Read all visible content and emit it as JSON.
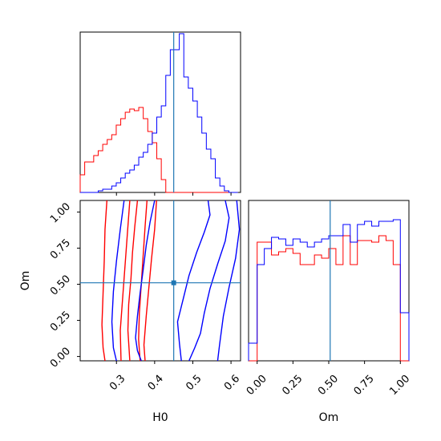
{
  "chart_data": {
    "type": "corner",
    "parameters": [
      "H0",
      "Om"
    ],
    "truths": {
      "H0": 0.45,
      "Om": 0.51
    },
    "truth_color": "#1f77b4",
    "series": [
      {
        "color": "#ff0000"
      },
      {
        "color": "#0000ff"
      }
    ],
    "x_labels": [
      "H0",
      "Om"
    ],
    "y_label": "Om",
    "panels": [
      {
        "id": "hist-H0",
        "type": "histogram",
        "parameter": "H0",
        "xlim": [
          0.205,
          0.625
        ],
        "ylim": [
          0,
          1.0
        ],
        "bin_edges": [
          0.205,
          0.2168,
          0.2286,
          0.2404,
          0.2522,
          0.264,
          0.2758,
          0.2876,
          0.2994,
          0.3112,
          0.323,
          0.3348,
          0.3466,
          0.3584,
          0.3702,
          0.382,
          0.3938,
          0.4056,
          0.4174,
          0.4292,
          0.441,
          0.4528,
          0.4646,
          0.4764,
          0.4882,
          0.5,
          0.5118,
          0.5236,
          0.5354,
          0.5472,
          0.559,
          0.5708,
          0.5826,
          0.5944,
          0.6062,
          0.618
        ],
        "counts": {
          "red": [
            0.11,
            0.19,
            0.19,
            0.23,
            0.26,
            0.3,
            0.33,
            0.36,
            0.42,
            0.46,
            0.5,
            0.52,
            0.51,
            0.53,
            0.46,
            0.38,
            0.31,
            0.21,
            0.08,
            0.0,
            0.0,
            0.0,
            0.0,
            0.0,
            0.0,
            0.0,
            0.0,
            0.0,
            0.0,
            0.0,
            0.0,
            0.0,
            0.0,
            0.0,
            0.0
          ],
          "blue": [
            0.0,
            0.0,
            0.0,
            0.0,
            0.01,
            0.02,
            0.02,
            0.04,
            0.06,
            0.09,
            0.12,
            0.14,
            0.17,
            0.22,
            0.25,
            0.3,
            0.37,
            0.47,
            0.54,
            0.73,
            0.89,
            0.89,
            0.99,
            0.72,
            0.65,
            0.57,
            0.47,
            0.37,
            0.27,
            0.21,
            0.09,
            0.04,
            0.01,
            0.0,
            0.0
          ]
        }
      },
      {
        "id": "contour-H0-Om",
        "type": "contour",
        "x_parameter": "H0",
        "y_parameter": "Om",
        "xlim": [
          0.205,
          0.625
        ],
        "ylim": [
          -0.03,
          1.08
        ],
        "x_ticks": [
          0.3,
          0.4,
          0.5,
          0.6
        ],
        "x_tick_labels": [
          "0.3",
          "0.4",
          "0.5",
          "0.6"
        ],
        "y_ticks": [
          0.0,
          0.25,
          0.5,
          0.75,
          1.0
        ],
        "y_tick_labels": [
          "0.00",
          "0.25",
          "0.50",
          "0.75",
          "1.00"
        ],
        "contours": {
          "blue": [
            [
              [
                0.54,
                1.08
              ],
              [
                0.545,
                0.98
              ],
              [
                0.53,
                0.86
              ],
              [
                0.51,
                0.72
              ],
              [
                0.49,
                0.56
              ],
              [
                0.475,
                0.4
              ],
              [
                0.46,
                0.24
              ],
              [
                0.465,
                0.09
              ],
              [
                0.47,
                -0.03
              ]
            ],
            [
              [
                0.585,
                1.08
              ],
              [
                0.595,
                0.96
              ],
              [
                0.585,
                0.8
              ],
              [
                0.565,
                0.64
              ],
              [
                0.545,
                0.47
              ],
              [
                0.53,
                0.3
              ],
              [
                0.52,
                0.16
              ],
              [
                0.505,
                0.06
              ],
              [
                0.49,
                -0.03
              ]
            ],
            [
              [
                0.4,
                1.08
              ],
              [
                0.388,
                0.93
              ],
              [
                0.378,
                0.77
              ],
              [
                0.37,
                0.6
              ],
              [
                0.362,
                0.44
              ],
              [
                0.355,
                0.28
              ],
              [
                0.35,
                0.13
              ],
              [
                0.355,
                0.04
              ],
              [
                0.365,
                -0.03
              ]
            ],
            [
              [
                0.615,
                1.08
              ],
              [
                0.622,
                0.88
              ],
              [
                0.612,
                0.68
              ],
              [
                0.595,
                0.48
              ],
              [
                0.58,
                0.28
              ],
              [
                0.57,
                0.08
              ],
              [
                0.565,
                -0.03
              ]
            ],
            [
              [
                0.32,
                1.08
              ],
              [
                0.31,
                0.88
              ],
              [
                0.3,
                0.66
              ],
              [
                0.292,
                0.45
              ],
              [
                0.288,
                0.24
              ],
              [
                0.292,
                0.06
              ],
              [
                0.3,
                -0.03
              ]
            ]
          ],
          "red": [
            [
              [
                0.355,
                1.08
              ],
              [
                0.348,
                0.9
              ],
              [
                0.342,
                0.72
              ],
              [
                0.338,
                0.54
              ],
              [
                0.332,
                0.36
              ],
              [
                0.33,
                0.18
              ],
              [
                0.335,
                -0.03
              ]
            ],
            [
              [
                0.38,
                1.08
              ],
              [
                0.375,
                0.9
              ],
              [
                0.37,
                0.7
              ],
              [
                0.365,
                0.5
              ],
              [
                0.36,
                0.3
              ],
              [
                0.358,
                0.12
              ],
              [
                0.362,
                -0.03
              ]
            ],
            [
              [
                0.335,
                1.08
              ],
              [
                0.33,
                0.9
              ],
              [
                0.325,
                0.72
              ],
              [
                0.32,
                0.54
              ],
              [
                0.315,
                0.36
              ],
              [
                0.31,
                0.18
              ],
              [
                0.312,
                -0.03
              ]
            ],
            [
              [
                0.405,
                1.08
              ],
              [
                0.4,
                0.88
              ],
              [
                0.392,
                0.68
              ],
              [
                0.385,
                0.48
              ],
              [
                0.378,
                0.28
              ],
              [
                0.372,
                0.08
              ],
              [
                0.375,
                -0.03
              ]
            ],
            [
              [
                0.275,
                1.08
              ],
              [
                0.27,
                0.88
              ],
              [
                0.268,
                0.66
              ],
              [
                0.265,
                0.44
              ],
              [
                0.262,
                0.22
              ],
              [
                0.265,
                0.06
              ],
              [
                0.27,
                -0.03
              ]
            ]
          ]
        }
      },
      {
        "id": "hist-Om",
        "type": "histogram",
        "parameter": "Om",
        "xlim": [
          -0.06,
          1.06
        ],
        "ylim": [
          0,
          1.0
        ],
        "x_ticks": [
          0.0,
          0.25,
          0.5,
          0.75,
          1.0
        ],
        "x_tick_labels": [
          "0.00",
          "0.25",
          "0.50",
          "0.75",
          "1.00"
        ],
        "bin_edges": [
          -0.06,
          0.0,
          0.05,
          0.1,
          0.15,
          0.2,
          0.25,
          0.3,
          0.35,
          0.4,
          0.45,
          0.5,
          0.55,
          0.6,
          0.65,
          0.7,
          0.75,
          0.8,
          0.85,
          0.9,
          0.95,
          1.0,
          1.06
        ],
        "counts": {
          "red": [
            0.0,
            0.74,
            0.74,
            0.66,
            0.68,
            0.7,
            0.67,
            0.6,
            0.6,
            0.66,
            0.64,
            0.7,
            0.6,
            0.78,
            0.6,
            0.75,
            0.75,
            0.74,
            0.78,
            0.75,
            0.6,
            0.0
          ],
          "blue": [
            0.11,
            0.6,
            0.7,
            0.77,
            0.76,
            0.72,
            0.76,
            0.74,
            0.71,
            0.74,
            0.76,
            0.78,
            0.78,
            0.85,
            0.74,
            0.85,
            0.87,
            0.84,
            0.87,
            0.87,
            0.88,
            0.3
          ]
        }
      }
    ]
  }
}
